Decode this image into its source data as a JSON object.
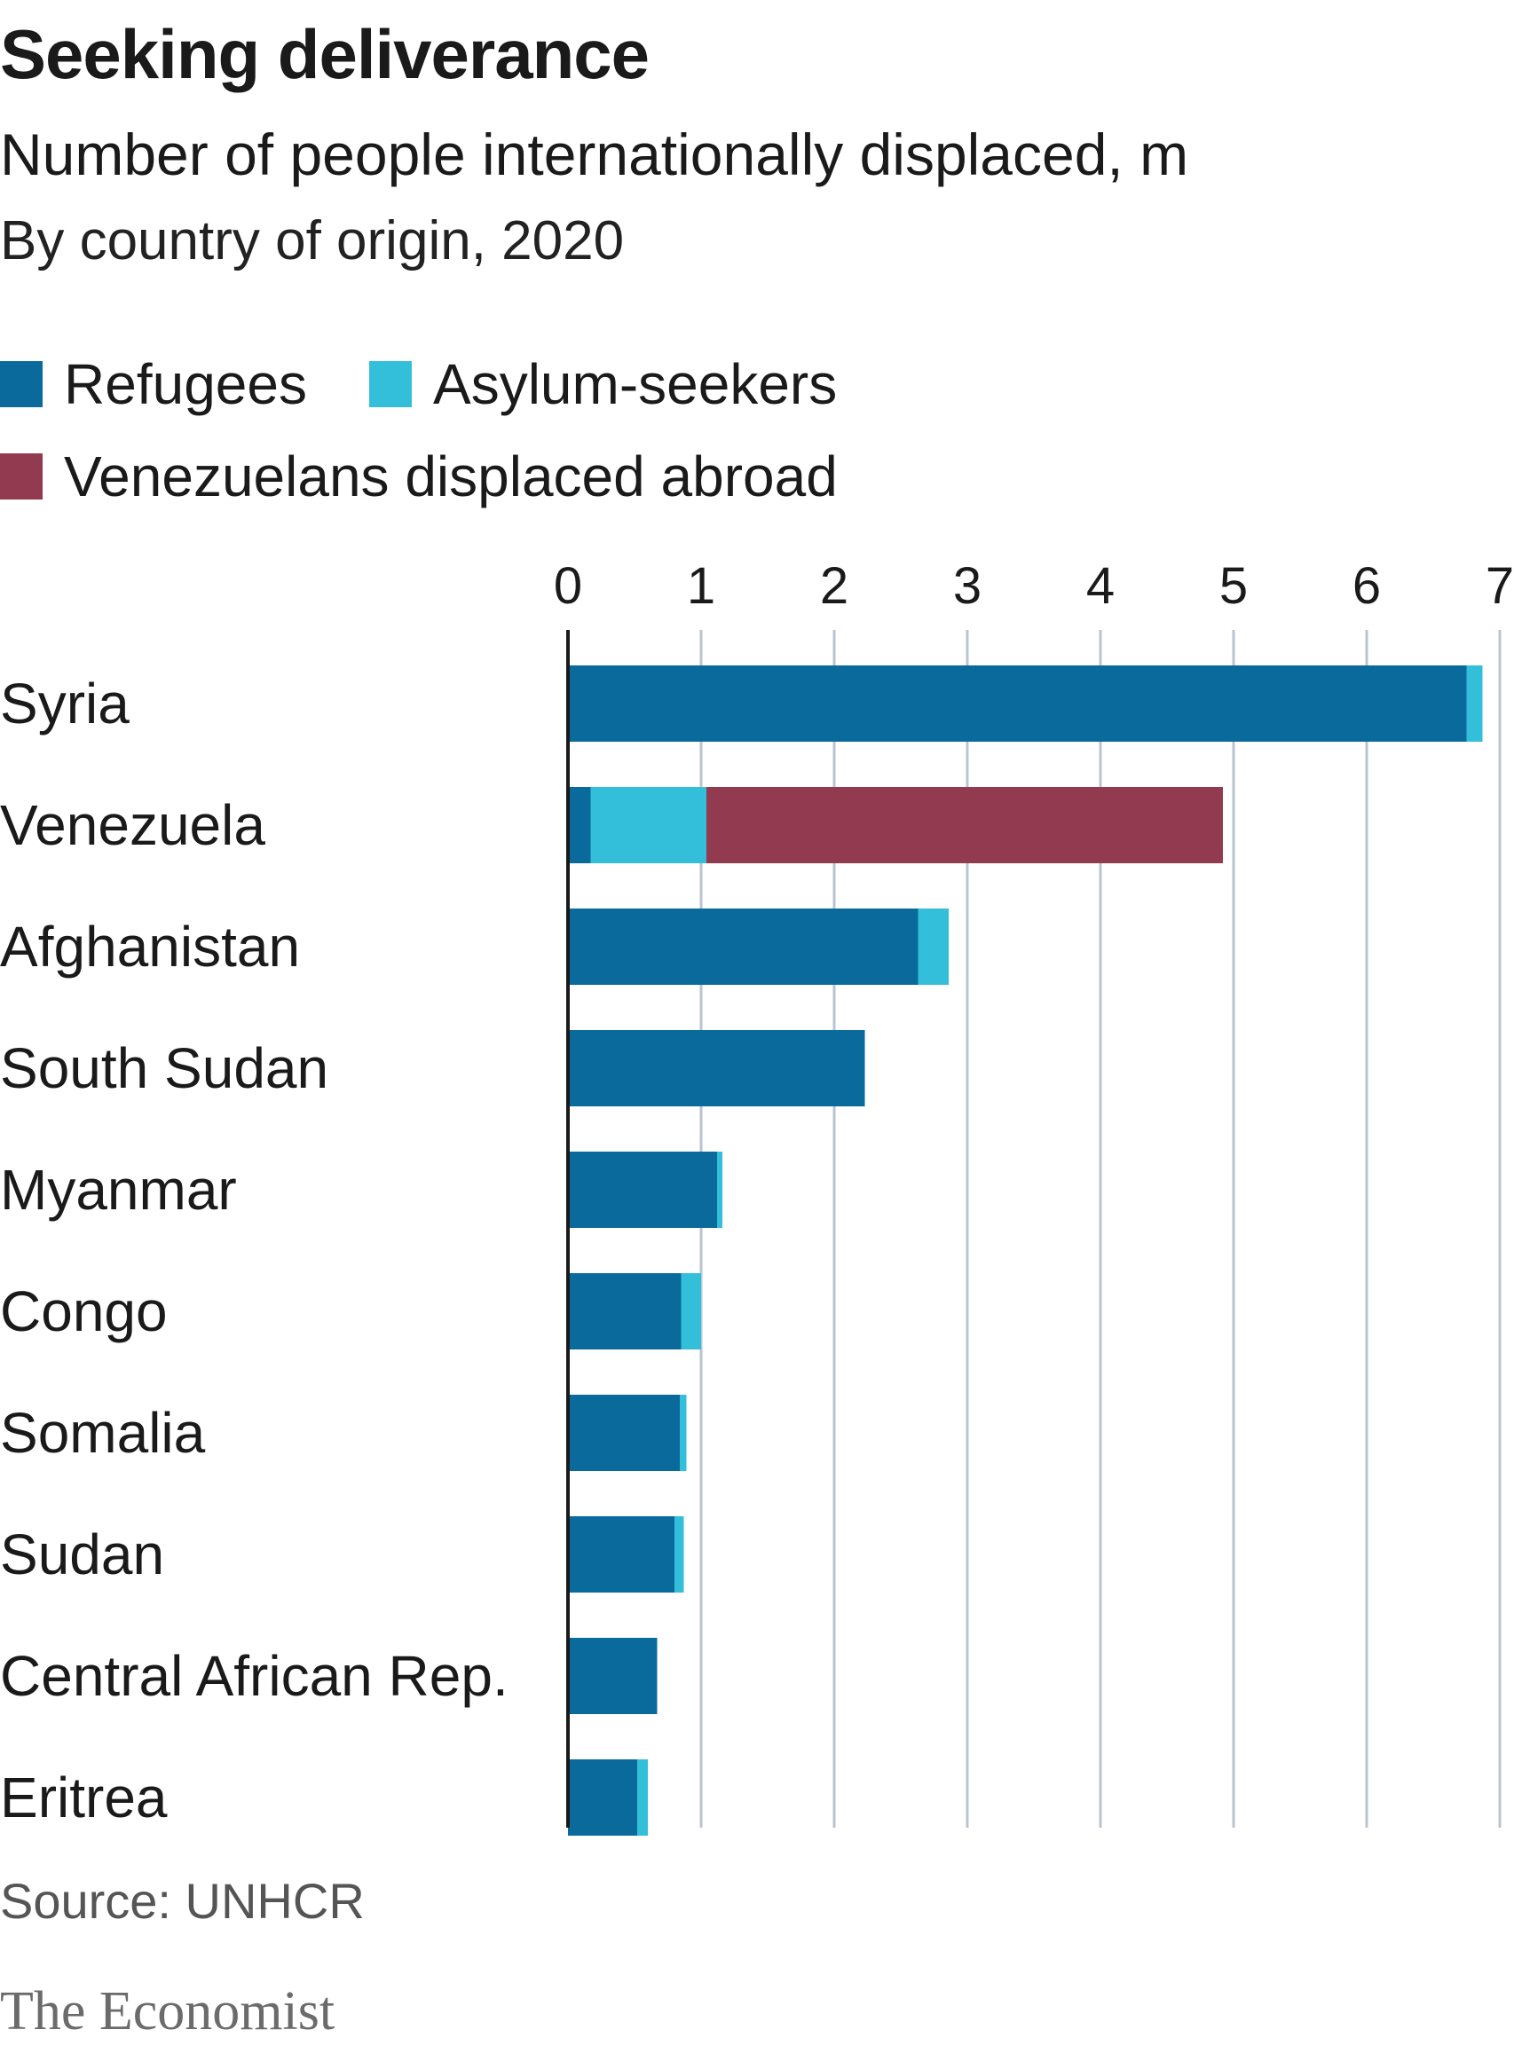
{
  "title": "Seeking deliverance",
  "subtitle": "Number of people internationally displaced, m",
  "note": "By country of origin, 2020",
  "source": "Source: UNHCR",
  "logo": "The Economist",
  "colors": {
    "refugees": "#0b6a9c",
    "asylum": "#33bfd9",
    "venezuelans": "#923a4f",
    "grid": "#b9c4d0",
    "axis": "#1a1a1a"
  },
  "chart_data": {
    "type": "bar",
    "orientation": "horizontal",
    "stacked": true,
    "grid": true,
    "legend_position": "top-left",
    "xlim": [
      0,
      7
    ],
    "x_ticks": [
      "0",
      "1",
      "2",
      "3",
      "4",
      "5",
      "6",
      "7"
    ],
    "categories": [
      "Syria",
      "Venezuela",
      "Afghanistan",
      "South Sudan",
      "Myanmar",
      "Congo",
      "Somalia",
      "Sudan",
      "Central African Rep.",
      "Eritrea"
    ],
    "series": [
      {
        "name": "Refugees",
        "color_key": "refugees",
        "values": [
          6.75,
          0.17,
          2.63,
          2.23,
          1.12,
          0.85,
          0.84,
          0.8,
          0.67,
          0.52
        ]
      },
      {
        "name": "Asylum-seekers",
        "color_key": "asylum",
        "values": [
          0.12,
          0.87,
          0.23,
          0.0,
          0.04,
          0.15,
          0.05,
          0.07,
          0.0,
          0.08
        ]
      },
      {
        "name": "Venezuelans displaced abroad",
        "color_key": "venezuelans",
        "values": [
          0,
          3.88,
          0,
          0,
          0,
          0,
          0,
          0,
          0,
          0
        ]
      }
    ]
  }
}
